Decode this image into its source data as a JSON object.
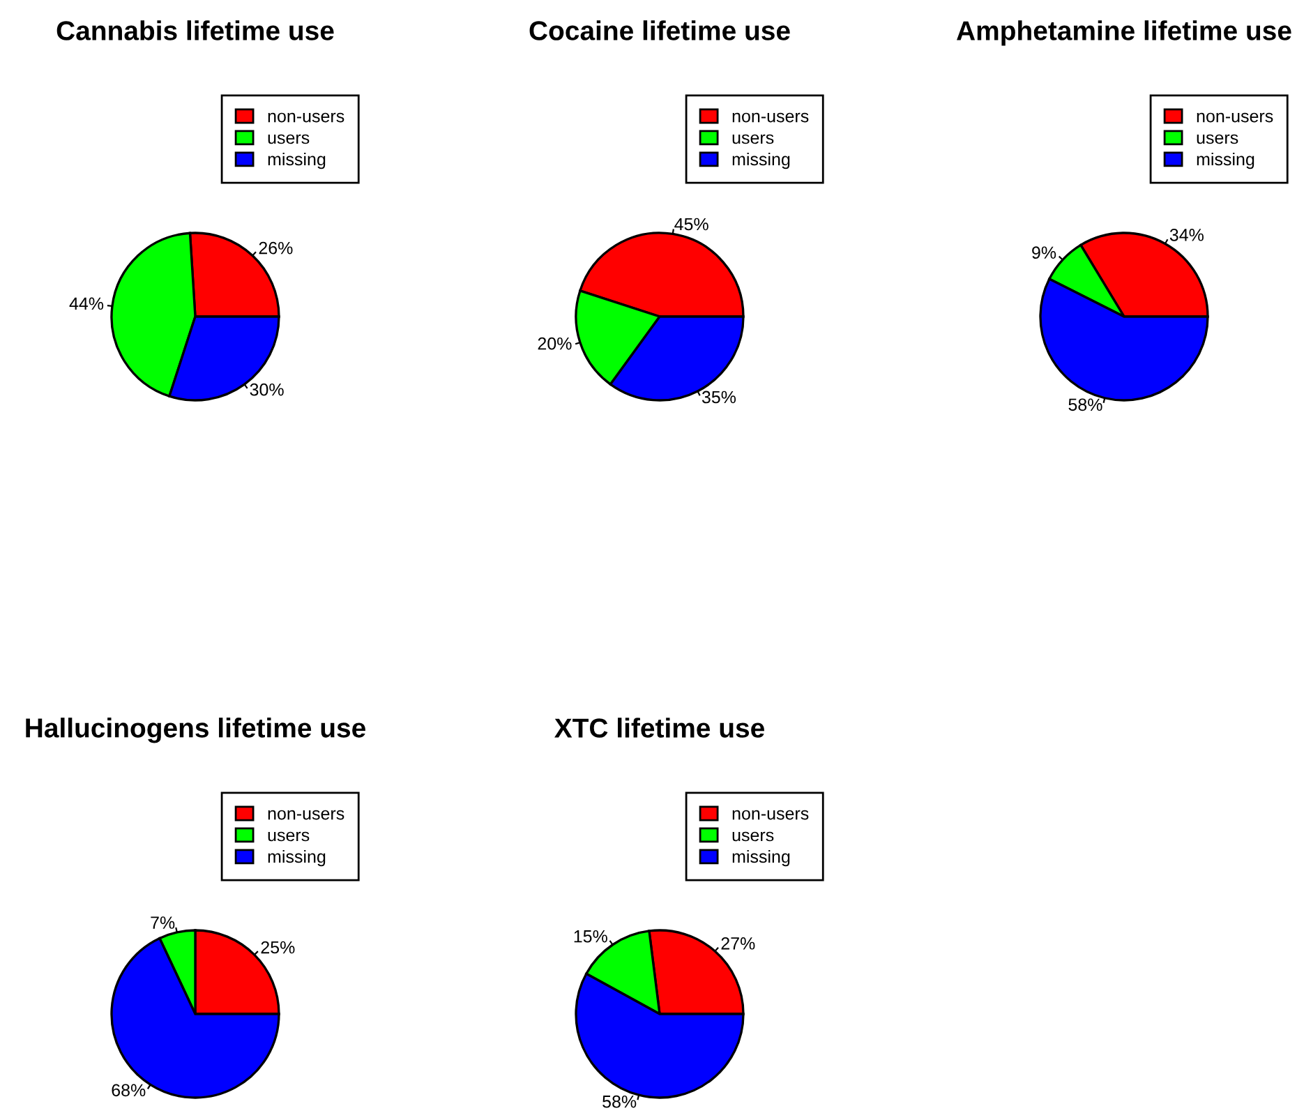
{
  "chart_data": [
    {
      "type": "pie",
      "title": "Cannabis lifetime use",
      "categories": [
        "non-users",
        "users",
        "missing"
      ],
      "values": [
        26,
        44,
        30
      ],
      "value_labels": [
        "26%",
        "44%",
        "30%"
      ],
      "colors": [
        "#ff0000",
        "#00ff00",
        "#0000ff"
      ],
      "legend": "top right"
    },
    {
      "type": "pie",
      "title": "Cocaine lifetime use",
      "categories": [
        "non-users",
        "users",
        "missing"
      ],
      "values": [
        45,
        20,
        35
      ],
      "value_labels": [
        "45%",
        "20%",
        "35%"
      ],
      "colors": [
        "#ff0000",
        "#00ff00",
        "#0000ff"
      ],
      "legend": "top right"
    },
    {
      "type": "pie",
      "title": "Amphetamine lifetime use",
      "categories": [
        "non-users",
        "users",
        "missing"
      ],
      "values": [
        34,
        9,
        58
      ],
      "value_labels": [
        "34%",
        "9%",
        "58%"
      ],
      "colors": [
        "#ff0000",
        "#00ff00",
        "#0000ff"
      ],
      "legend": "top right"
    },
    {
      "type": "pie",
      "title": "Hallucinogens lifetime use",
      "categories": [
        "non-users",
        "users",
        "missing"
      ],
      "values": [
        25,
        7,
        68
      ],
      "value_labels": [
        "25%",
        "7%",
        "68%"
      ],
      "colors": [
        "#ff0000",
        "#00ff00",
        "#0000ff"
      ],
      "legend": "top right"
    },
    {
      "type": "pie",
      "title": "XTC lifetime use",
      "categories": [
        "non-users",
        "users",
        "missing"
      ],
      "values": [
        27,
        15,
        58
      ],
      "value_labels": [
        "27%",
        "15%",
        "58%"
      ],
      "colors": [
        "#ff0000",
        "#00ff00",
        "#0000ff"
      ],
      "legend": "top right"
    }
  ]
}
